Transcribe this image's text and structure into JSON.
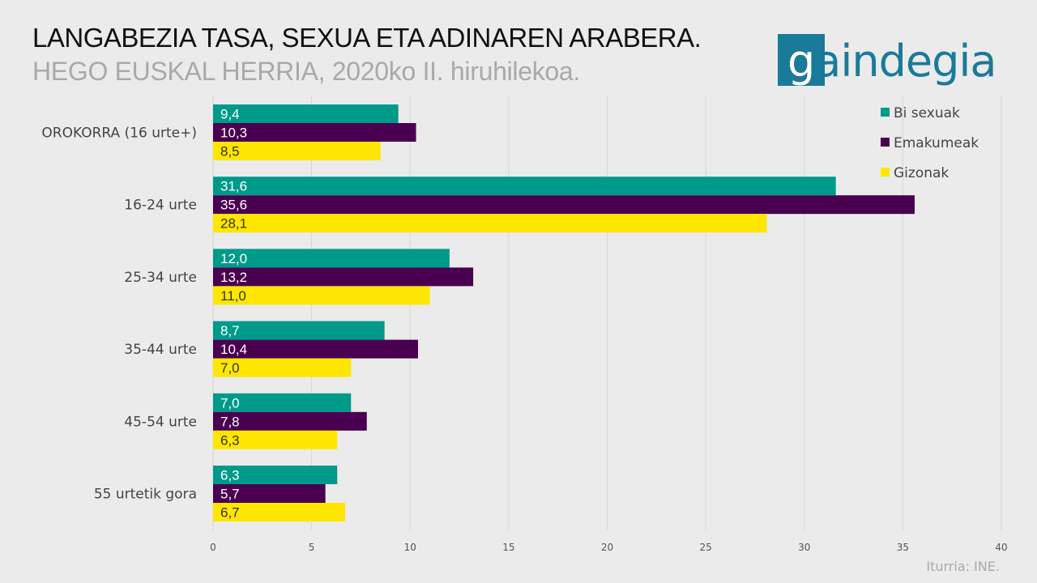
{
  "header": {
    "title": "LANGABEZIA TASA, SEXUA ETA ADINAREN ARABERA.",
    "subtitle": "HEGO EUSKAL HERRIA, 2020ko II. hiruhilekoa."
  },
  "logo": {
    "text": "aindegia",
    "initial": "g"
  },
  "source": "Iturria: INE.",
  "colors": {
    "bi_sexuak": "#009a8a",
    "emakumeak": "#4a0050",
    "gizonak": "#ffe600",
    "grid": "#d6d6d6"
  },
  "chart_data": {
    "type": "bar",
    "orientation": "horizontal",
    "categories": [
      "OROKORRA (16 urte+)",
      "16-24 urte",
      "25-34 urte",
      "35-44 urte",
      "45-54 urte",
      "55 urtetik gora"
    ],
    "series": [
      {
        "name": "Bi sexuak",
        "values": [
          9.4,
          31.6,
          12.0,
          8.7,
          7.0,
          6.3
        ],
        "labels": [
          "9,4",
          "31,6",
          "12,0",
          "8,7",
          "7,0",
          "6,3"
        ]
      },
      {
        "name": "Emakumeak",
        "values": [
          10.3,
          35.6,
          13.2,
          10.4,
          7.8,
          5.7
        ],
        "labels": [
          "10,3",
          "35,6",
          "13,2",
          "10,4",
          "7,8",
          "5,7"
        ]
      },
      {
        "name": "Gizonak",
        "values": [
          8.5,
          28.1,
          11.0,
          7.0,
          6.3,
          6.7
        ],
        "labels": [
          "8,5",
          "28,1",
          "11,0",
          "7,0",
          "6,3",
          "6,7"
        ]
      }
    ],
    "xlim": [
      0,
      40
    ],
    "xticks": [
      "0",
      "5",
      "10",
      "15",
      "20",
      "25",
      "30",
      "35",
      "40"
    ],
    "grid": true,
    "legend": "top-right"
  }
}
